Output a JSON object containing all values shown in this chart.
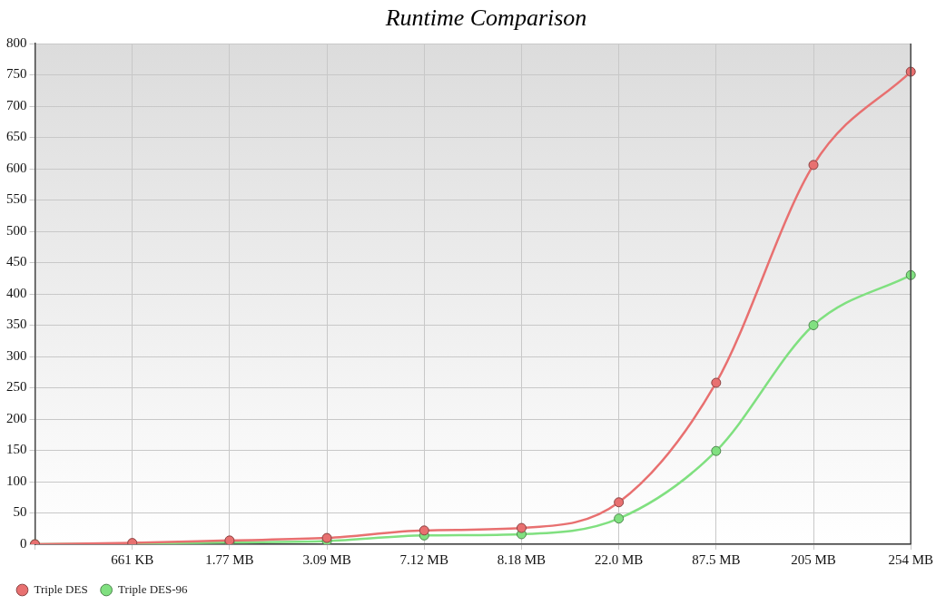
{
  "chart_data": {
    "type": "line",
    "title": "Runtime Comparison",
    "categories": [
      null,
      "661 KB",
      "1.77 MB",
      "3.09 MB",
      "7.12 MB",
      "8.18 MB",
      "22.0 MB",
      "87.5 MB",
      "205 MB",
      "254 MB"
    ],
    "series": [
      {
        "name": "Triple DES",
        "color": "#e87070",
        "values": [
          0,
          2,
          6,
          10,
          22,
          26,
          67,
          258,
          606,
          755
        ]
      },
      {
        "name": "Triple DES-96",
        "color": "#80e080",
        "values": [
          0,
          1,
          3,
          5,
          14,
          16,
          41,
          149,
          350,
          430
        ]
      }
    ],
    "ylim": [
      0,
      800
    ],
    "yticks": [
      0,
      50,
      100,
      150,
      200,
      250,
      300,
      350,
      400,
      450,
      500,
      550,
      600,
      650,
      700,
      750,
      800
    ],
    "grid": true,
    "legend": "bottom left",
    "marker": "circle",
    "line_style": "solid"
  }
}
